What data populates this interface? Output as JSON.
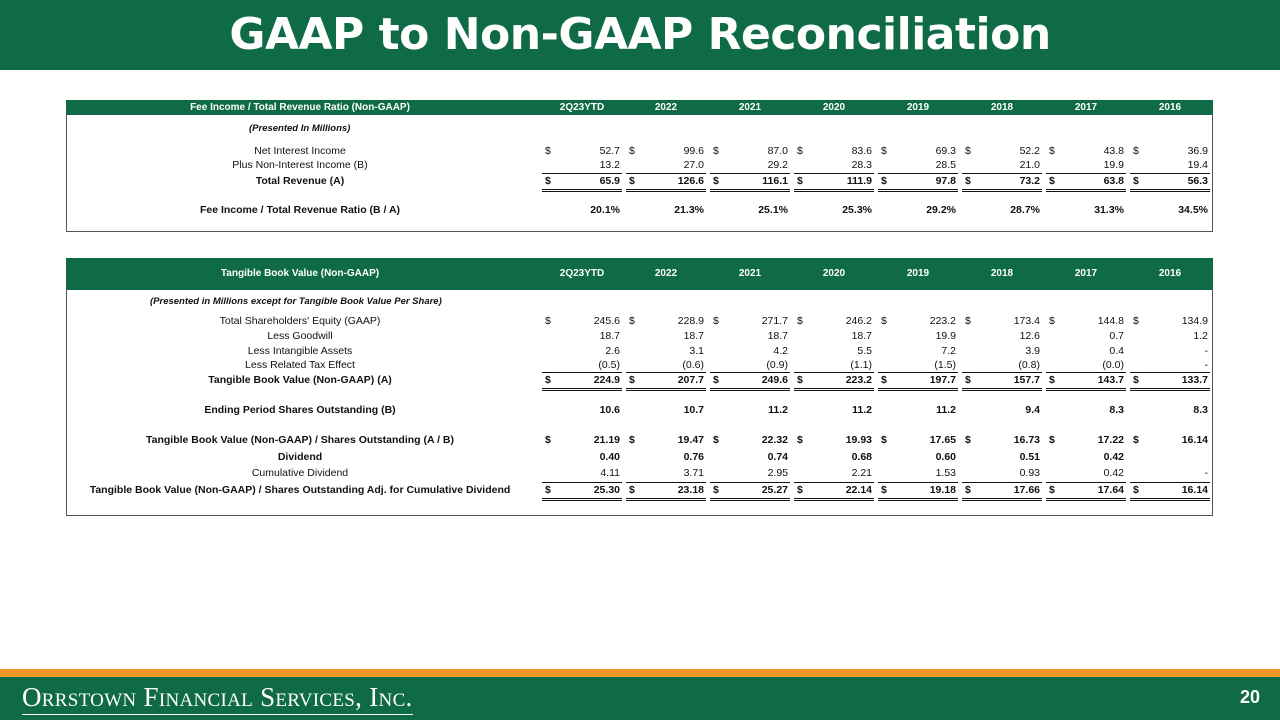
{
  "header": {
    "title": "GAAP to Non-GAAP Reconciliation"
  },
  "tables": [
    {
      "columns": [
        "Fee Income / Total Revenue Ratio (Non-GAAP)",
        "2Q23YTD",
        "2022",
        "2021",
        "2020",
        "2019",
        "2018",
        "2017",
        "2016"
      ],
      "note": "(Presented In Millions)",
      "rows": [
        {
          "label": "Net Interest Income",
          "currency": "$",
          "values": [
            "52.7",
            "99.6",
            "87.0",
            "83.6",
            "69.3",
            "52.2",
            "43.8",
            "36.9"
          ]
        },
        {
          "label": "Plus Non-Interest Income (B)",
          "values": [
            "13.2",
            "27.0",
            "29.2",
            "28.3",
            "28.5",
            "21.0",
            "19.9",
            "19.4"
          ]
        },
        {
          "label": "Total Revenue (A)",
          "bold": true,
          "total": true,
          "currency": "$",
          "values": [
            "65.9",
            "126.6",
            "116.1",
            "111.9",
            "97.8",
            "73.2",
            "63.8",
            "56.3"
          ]
        },
        {
          "label": "Fee Income / Total Revenue Ratio (B / A)",
          "bold": true,
          "values": [
            "20.1%",
            "21.3%",
            "25.1%",
            "25.3%",
            "29.2%",
            "28.7%",
            "31.3%",
            "34.5%"
          ]
        }
      ]
    },
    {
      "columns": [
        "Tangible Book Value (Non-GAAP)",
        "2Q23YTD",
        "2022",
        "2021",
        "2020",
        "2019",
        "2018",
        "2017",
        "2016"
      ],
      "note": "(Presented in Millions except for Tangible Book Value Per Share)",
      "rows": [
        {
          "label": "Total Shareholders' Equity (GAAP)",
          "currency": "$",
          "values": [
            "245.6",
            "228.9",
            "271.7",
            "246.2",
            "223.2",
            "173.4",
            "144.8",
            "134.9"
          ]
        },
        {
          "label": "Less Goodwill",
          "values": [
            "18.7",
            "18.7",
            "18.7",
            "18.7",
            "19.9",
            "12.6",
            "0.7",
            "1.2"
          ]
        },
        {
          "label": "Less Intangible Assets",
          "values": [
            "2.6",
            "3.1",
            "4.2",
            "5.5",
            "7.2",
            "3.9",
            "0.4",
            "-"
          ]
        },
        {
          "label": "Less Related Tax Effect",
          "values": [
            "(0.5)",
            "(0.6)",
            "(0.9)",
            "(1.1)",
            "(1.5)",
            "(0.8)",
            "(0.0)",
            "-"
          ]
        },
        {
          "label": "Tangible Book Value (Non-GAAP) (A)",
          "bold": true,
          "total": true,
          "currency": "$",
          "values": [
            "224.9",
            "207.7",
            "249.6",
            "223.2",
            "197.7",
            "157.7",
            "143.7",
            "133.7"
          ]
        },
        {
          "label": "Ending Period Shares Outstanding (B)",
          "bold": true,
          "values": [
            "10.6",
            "10.7",
            "11.2",
            "11.2",
            "11.2",
            "9.4",
            "8.3",
            "8.3"
          ]
        },
        {
          "label": "Tangible Book Value (Non-GAAP) / Shares Outstanding (A / B)",
          "bold": true,
          "currency": "$",
          "values": [
            "21.19",
            "19.47",
            "22.32",
            "19.93",
            "17.65",
            "16.73",
            "17.22",
            "16.14"
          ]
        },
        {
          "label": "Dividend",
          "bold": true,
          "values": [
            "0.40",
            "0.76",
            "0.74",
            "0.68",
            "0.60",
            "0.51",
            "0.42",
            null
          ]
        },
        {
          "label": "Cumulative Dividend",
          "values": [
            "4.11",
            "3.71",
            "2.95",
            "2.21",
            "1.53",
            "0.93",
            "0.42",
            "-"
          ]
        },
        {
          "label": "Tangible Book Value (Non-GAAP) / Shares Outstanding Adj. for Cumulative Dividend",
          "bold": true,
          "total": true,
          "currency": "$",
          "values": [
            "25.30",
            "23.18",
            "25.27",
            "22.14",
            "19.18",
            "17.66",
            "17.64",
            "16.14"
          ]
        }
      ]
    }
  ],
  "footer": {
    "company": "Orrstown Financial Services, Inc.",
    "page": "20"
  }
}
